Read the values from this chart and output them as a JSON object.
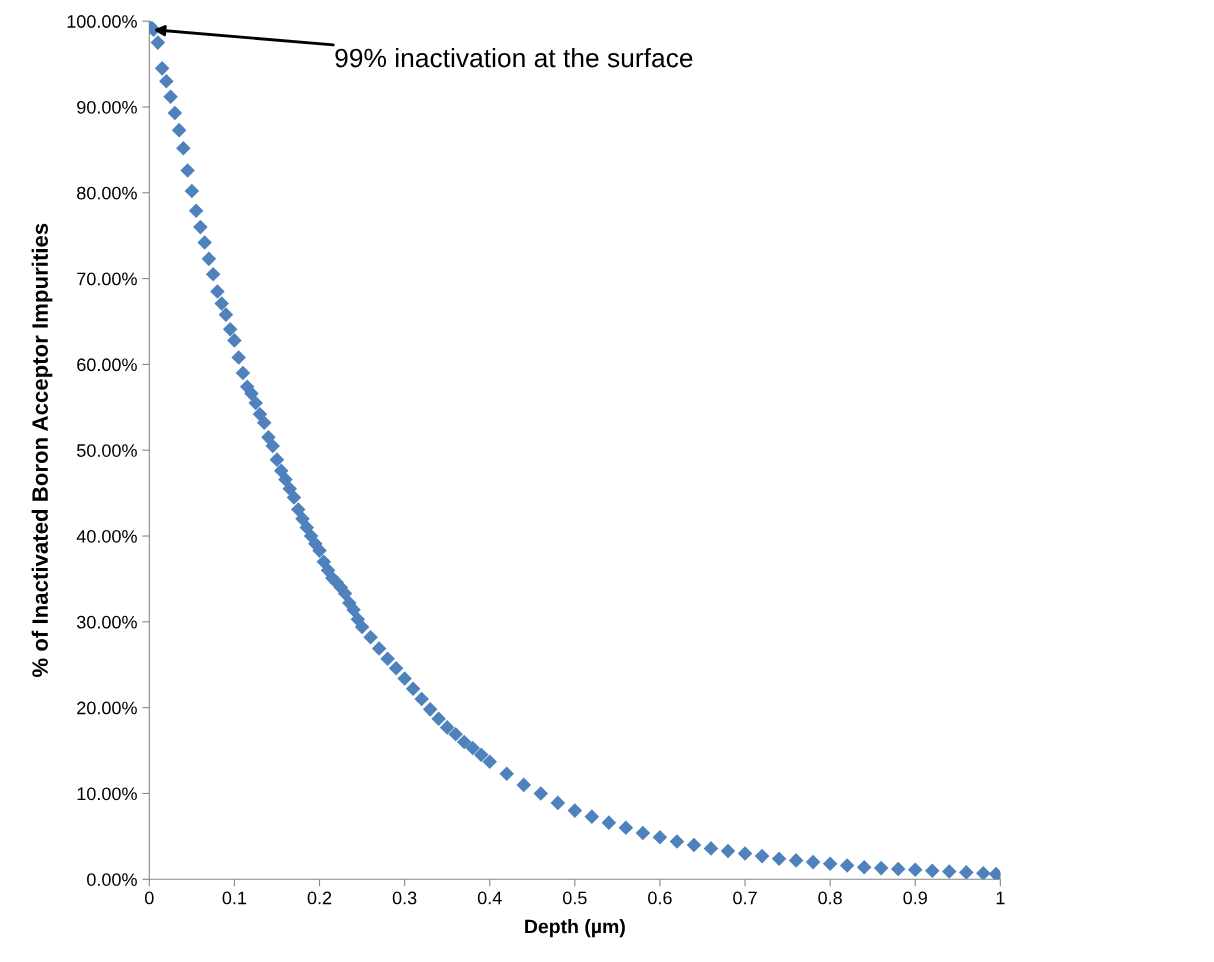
{
  "chart_data": {
    "type": "scatter",
    "xlabel": "Depth (µm)",
    "ylabel": "% of Inactivated Boron Acceptor Impurities",
    "x": [
      0,
      0.005,
      0.01,
      0.015,
      0.02,
      0.025,
      0.03,
      0.035,
      0.04,
      0.045,
      0.05,
      0.055,
      0.06,
      0.065,
      0.07,
      0.075,
      0.08,
      0.085,
      0.09,
      0.095,
      0.1,
      0.105,
      0.11,
      0.115,
      0.12,
      0.125,
      0.13,
      0.135,
      0.14,
      0.145,
      0.15,
      0.155,
      0.16,
      0.165,
      0.17,
      0.175,
      0.18,
      0.185,
      0.19,
      0.195,
      0.2,
      0.205,
      0.21,
      0.215,
      0.22,
      0.225,
      0.23,
      0.235,
      0.24,
      0.245,
      0.25,
      0.26,
      0.27,
      0.28,
      0.29,
      0.3,
      0.31,
      0.32,
      0.33,
      0.34,
      0.35,
      0.36,
      0.37,
      0.38,
      0.39,
      0.4,
      0.42,
      0.44,
      0.46,
      0.48,
      0.5,
      0.52,
      0.54,
      0.56,
      0.58,
      0.6,
      0.62,
      0.64,
      0.66,
      0.68,
      0.7,
      0.72,
      0.74,
      0.76,
      0.78,
      0.8,
      0.82,
      0.84,
      0.86,
      0.88,
      0.9,
      0.92,
      0.94,
      0.96,
      0.98,
      0.995,
      1.0
    ],
    "series": [
      {
        "color": "#4f81bd",
        "values": [
          99.5,
          99.0,
          97.5,
          94.5,
          93.0,
          91.2,
          89.3,
          87.3,
          85.2,
          82.6,
          80.2,
          77.9,
          76.0,
          74.2,
          72.3,
          70.5,
          68.5,
          67.1,
          65.8,
          64.1,
          62.8,
          60.8,
          59.0,
          57.4,
          56.6,
          55.5,
          54.2,
          53.2,
          51.5,
          50.5,
          48.9,
          47.6,
          46.6,
          45.5,
          44.5,
          43.1,
          42.0,
          41.0,
          40.0,
          39.1,
          38.3,
          37.0,
          36.0,
          35.1,
          34.6,
          34.0,
          33.3,
          32.2,
          31.4,
          30.3,
          29.4,
          28.2,
          26.9,
          25.7,
          24.6,
          23.4,
          22.2,
          21.0,
          19.8,
          18.7,
          17.7,
          16.9,
          16.0,
          15.3,
          14.5,
          13.7,
          12.3,
          11.0,
          10.0,
          8.9,
          8.0,
          7.3,
          6.6,
          6.0,
          5.4,
          4.9,
          4.4,
          4.0,
          3.6,
          3.3,
          3.0,
          2.7,
          2.4,
          2.2,
          2.0,
          1.8,
          1.6,
          1.4,
          1.3,
          1.2,
          1.1,
          1.0,
          0.9,
          0.8,
          0.7,
          0.6,
          0.0
        ]
      }
    ],
    "marker": "diamond",
    "xlim": [
      0,
      1
    ],
    "xticks": [
      0,
      0.1,
      0.2,
      0.3,
      0.4,
      0.5,
      0.6,
      0.7,
      0.8,
      0.9,
      1
    ],
    "ylim": [
      0,
      100
    ],
    "yticks": [
      {
        "value": 0,
        "label": "0.00%"
      },
      {
        "value": 10,
        "label": "10.00%"
      },
      {
        "value": 20,
        "label": "20.00%"
      },
      {
        "value": 30,
        "label": "30.00%"
      },
      {
        "value": 40,
        "label": "40.00%"
      },
      {
        "value": 50,
        "label": "50.00%"
      },
      {
        "value": 60,
        "label": "60.00%"
      },
      {
        "value": 70,
        "label": "70.00%"
      },
      {
        "value": 80,
        "label": "80.00%"
      },
      {
        "value": 90,
        "label": "90.00%"
      },
      {
        "value": 100,
        "label": "100.00%"
      }
    ],
    "grid": false,
    "legend": false,
    "annotations": [
      {
        "text": "99% inactivation at the surface",
        "x": 0.005,
        "y": 99.0
      }
    ]
  }
}
